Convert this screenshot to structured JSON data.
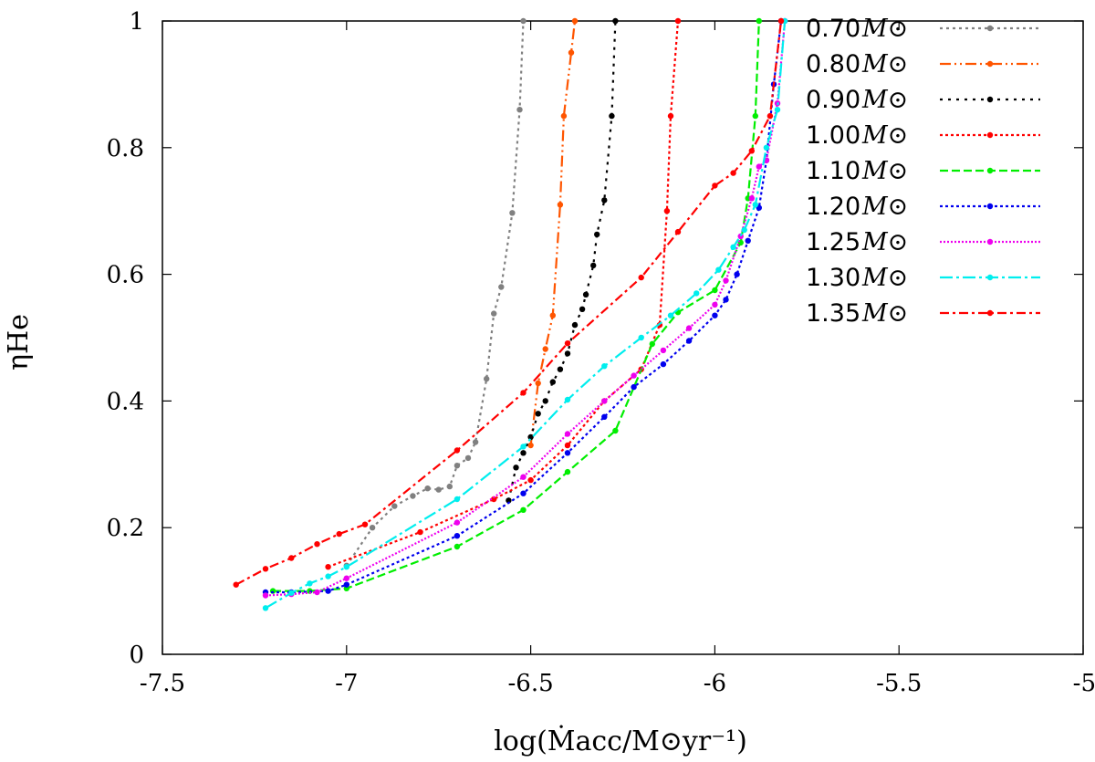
{
  "chart_data": {
    "type": "line",
    "title": "",
    "xlabel": "log(Ṁacc/M⊙yr⁻¹)",
    "ylabel": "ηHe",
    "xlim": [
      -7.5,
      -5
    ],
    "ylim": [
      0,
      1
    ],
    "xticks": [
      -7.5,
      -7,
      -6.5,
      -6,
      -5.5,
      -5
    ],
    "xtick_labels": [
      "-7.5",
      "-7",
      "-6.5",
      "-6",
      "-5.5",
      "-5"
    ],
    "yticks": [
      0,
      0.2,
      0.4,
      0.6,
      0.8,
      1
    ],
    "ytick_labels": [
      "0",
      "0.2",
      "0.4",
      "0.6",
      "0.8",
      "1"
    ],
    "legend_position": "top-right",
    "grid": false,
    "series": [
      {
        "name": "0.70",
        "unit": "M⊙",
        "color": "#808080",
        "dash": "3 4",
        "x": [
          -7.0,
          -6.93,
          -6.87,
          -6.82,
          -6.78,
          -6.75,
          -6.72,
          -6.7,
          -6.67,
          -6.65,
          -6.62,
          -6.6,
          -6.58,
          -6.55,
          -6.53,
          -6.52
        ],
        "y": [
          0.14,
          0.2,
          0.234,
          0.25,
          0.262,
          0.26,
          0.265,
          0.298,
          0.31,
          0.335,
          0.435,
          0.538,
          0.58,
          0.697,
          0.86,
          1.0
        ]
      },
      {
        "name": "0.80",
        "unit": "M⊙",
        "color": "#ff5500",
        "dash": "12 4 2 4 2 4",
        "x": [
          -6.5,
          -6.48,
          -6.46,
          -6.44,
          -6.42,
          -6.41,
          -6.39,
          -6.38
        ],
        "y": [
          0.33,
          0.428,
          0.482,
          0.535,
          0.71,
          0.85,
          0.95,
          1.0
        ]
      },
      {
        "name": "0.90",
        "unit": "M⊙",
        "color": "#000000",
        "dash": "3 6",
        "x": [
          -6.56,
          -6.54,
          -6.52,
          -6.5,
          -6.48,
          -6.46,
          -6.44,
          -6.42,
          -6.4,
          -6.38,
          -6.36,
          -6.35,
          -6.33,
          -6.32,
          -6.3,
          -6.28,
          -6.27
        ],
        "y": [
          0.243,
          0.295,
          0.318,
          0.343,
          0.38,
          0.4,
          0.43,
          0.45,
          0.475,
          0.52,
          0.545,
          0.568,
          0.614,
          0.663,
          0.717,
          0.85,
          1.0
        ]
      },
      {
        "name": "1.00",
        "unit": "M⊙",
        "color": "#ff0000",
        "dash": "3 3",
        "x": [
          -7.05,
          -6.8,
          -6.6,
          -6.5,
          -6.4,
          -6.3,
          -6.2,
          -6.15,
          -6.13,
          -6.12,
          -6.1
        ],
        "y": [
          0.138,
          0.193,
          0.245,
          0.275,
          0.33,
          0.4,
          0.45,
          0.52,
          0.7,
          0.85,
          1.0
        ]
      },
      {
        "name": "1.10",
        "unit": "M⊙",
        "color": "#00ee00",
        "dash": "9 4",
        "x": [
          -7.2,
          -7.1,
          -7.0,
          -6.7,
          -6.52,
          -6.4,
          -6.27,
          -6.17,
          -6.1,
          -6.0,
          -5.93,
          -5.91,
          -5.89,
          -5.88
        ],
        "y": [
          0.1,
          0.1,
          0.104,
          0.17,
          0.228,
          0.288,
          0.353,
          0.49,
          0.54,
          0.575,
          0.65,
          0.72,
          0.85,
          1.0
        ]
      },
      {
        "name": "1.20",
        "unit": "M⊙",
        "color": "#0000ee",
        "dash": "3 3",
        "x": [
          -7.22,
          -7.15,
          -7.05,
          -7.0,
          -6.7,
          -6.52,
          -6.4,
          -6.3,
          -6.22,
          -6.14,
          -6.07,
          -6.0,
          -5.97,
          -5.94,
          -5.91,
          -5.88,
          -5.86,
          -5.84,
          -5.82
        ],
        "y": [
          0.098,
          0.098,
          0.1,
          0.11,
          0.187,
          0.254,
          0.318,
          0.375,
          0.422,
          0.458,
          0.495,
          0.535,
          0.56,
          0.6,
          0.653,
          0.705,
          0.78,
          0.9,
          1.0
        ]
      },
      {
        "name": "1.25",
        "unit": "M⊙",
        "color": "#ee00ee",
        "dash": "2 2",
        "x": [
          -7.22,
          -7.15,
          -7.08,
          -7.0,
          -6.7,
          -6.52,
          -6.4,
          -6.3,
          -6.22,
          -6.14,
          -6.07,
          -6.0,
          -5.97,
          -5.93,
          -5.9,
          -5.88,
          -5.86,
          -5.83,
          -5.81
        ],
        "y": [
          0.093,
          0.095,
          0.098,
          0.12,
          0.208,
          0.28,
          0.348,
          0.4,
          0.44,
          0.48,
          0.515,
          0.552,
          0.59,
          0.66,
          0.72,
          0.77,
          0.78,
          0.87,
          1.0
        ]
      },
      {
        "name": "1.30",
        "unit": "M⊙",
        "color": "#00eeee",
        "dash": "14 4 3 4",
        "x": [
          -7.22,
          -7.15,
          -7.1,
          -7.05,
          -7.0,
          -6.7,
          -6.52,
          -6.4,
          -6.3,
          -6.2,
          -6.12,
          -6.05,
          -5.99,
          -5.95,
          -5.92,
          -5.89,
          -5.86,
          -5.83,
          -5.81
        ],
        "y": [
          0.073,
          0.097,
          0.112,
          0.123,
          0.138,
          0.245,
          0.328,
          0.402,
          0.455,
          0.5,
          0.535,
          0.57,
          0.607,
          0.643,
          0.67,
          0.71,
          0.8,
          0.86,
          1.0
        ]
      },
      {
        "name": "1.35",
        "unit": "M⊙",
        "color": "#ff0000",
        "dash": "10 4 3 4",
        "x": [
          -7.3,
          -7.22,
          -7.15,
          -7.08,
          -7.02,
          -6.95,
          -6.7,
          -6.52,
          -6.4,
          -6.2,
          -6.1,
          -6.0,
          -5.95,
          -5.9,
          -5.85,
          -5.82
        ],
        "y": [
          0.11,
          0.135,
          0.152,
          0.174,
          0.19,
          0.205,
          0.322,
          0.413,
          0.491,
          0.595,
          0.667,
          0.74,
          0.76,
          0.795,
          0.85,
          1.0
        ]
      }
    ]
  }
}
